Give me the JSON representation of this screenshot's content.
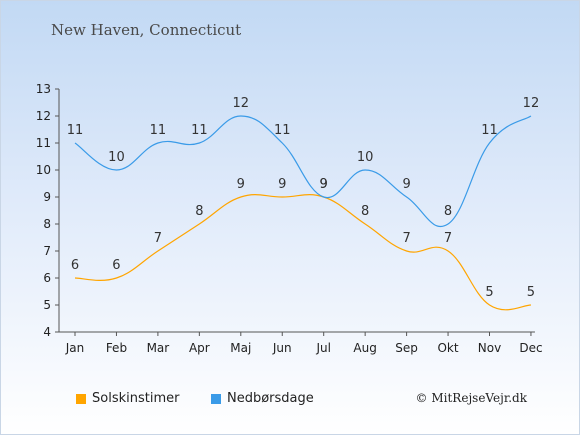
{
  "chart_data": {
    "type": "line",
    "title": "New Haven, Connecticut",
    "categories": [
      "Jan",
      "Feb",
      "Mar",
      "Apr",
      "Maj",
      "Jun",
      "Jul",
      "Aug",
      "Sep",
      "Okt",
      "Nov",
      "Dec"
    ],
    "series": [
      {
        "name": "Solskinstimer",
        "color": "#ffa500",
        "values": [
          6,
          6,
          7,
          8,
          9,
          9,
          9,
          8,
          7,
          7,
          5,
          5
        ]
      },
      {
        "name": "Nedbørsdage",
        "color": "#3a9be8",
        "values": [
          11,
          10,
          11,
          11,
          12,
          11,
          9,
          10,
          9,
          8,
          11,
          12
        ]
      }
    ],
    "ylim": [
      4,
      13
    ],
    "yticks": [
      4,
      5,
      6,
      7,
      8,
      9,
      10,
      11,
      12,
      13
    ],
    "grid": false,
    "legend_position": "bottom-left"
  },
  "footer": {
    "credit": "© MitRejseVejr.dk"
  }
}
